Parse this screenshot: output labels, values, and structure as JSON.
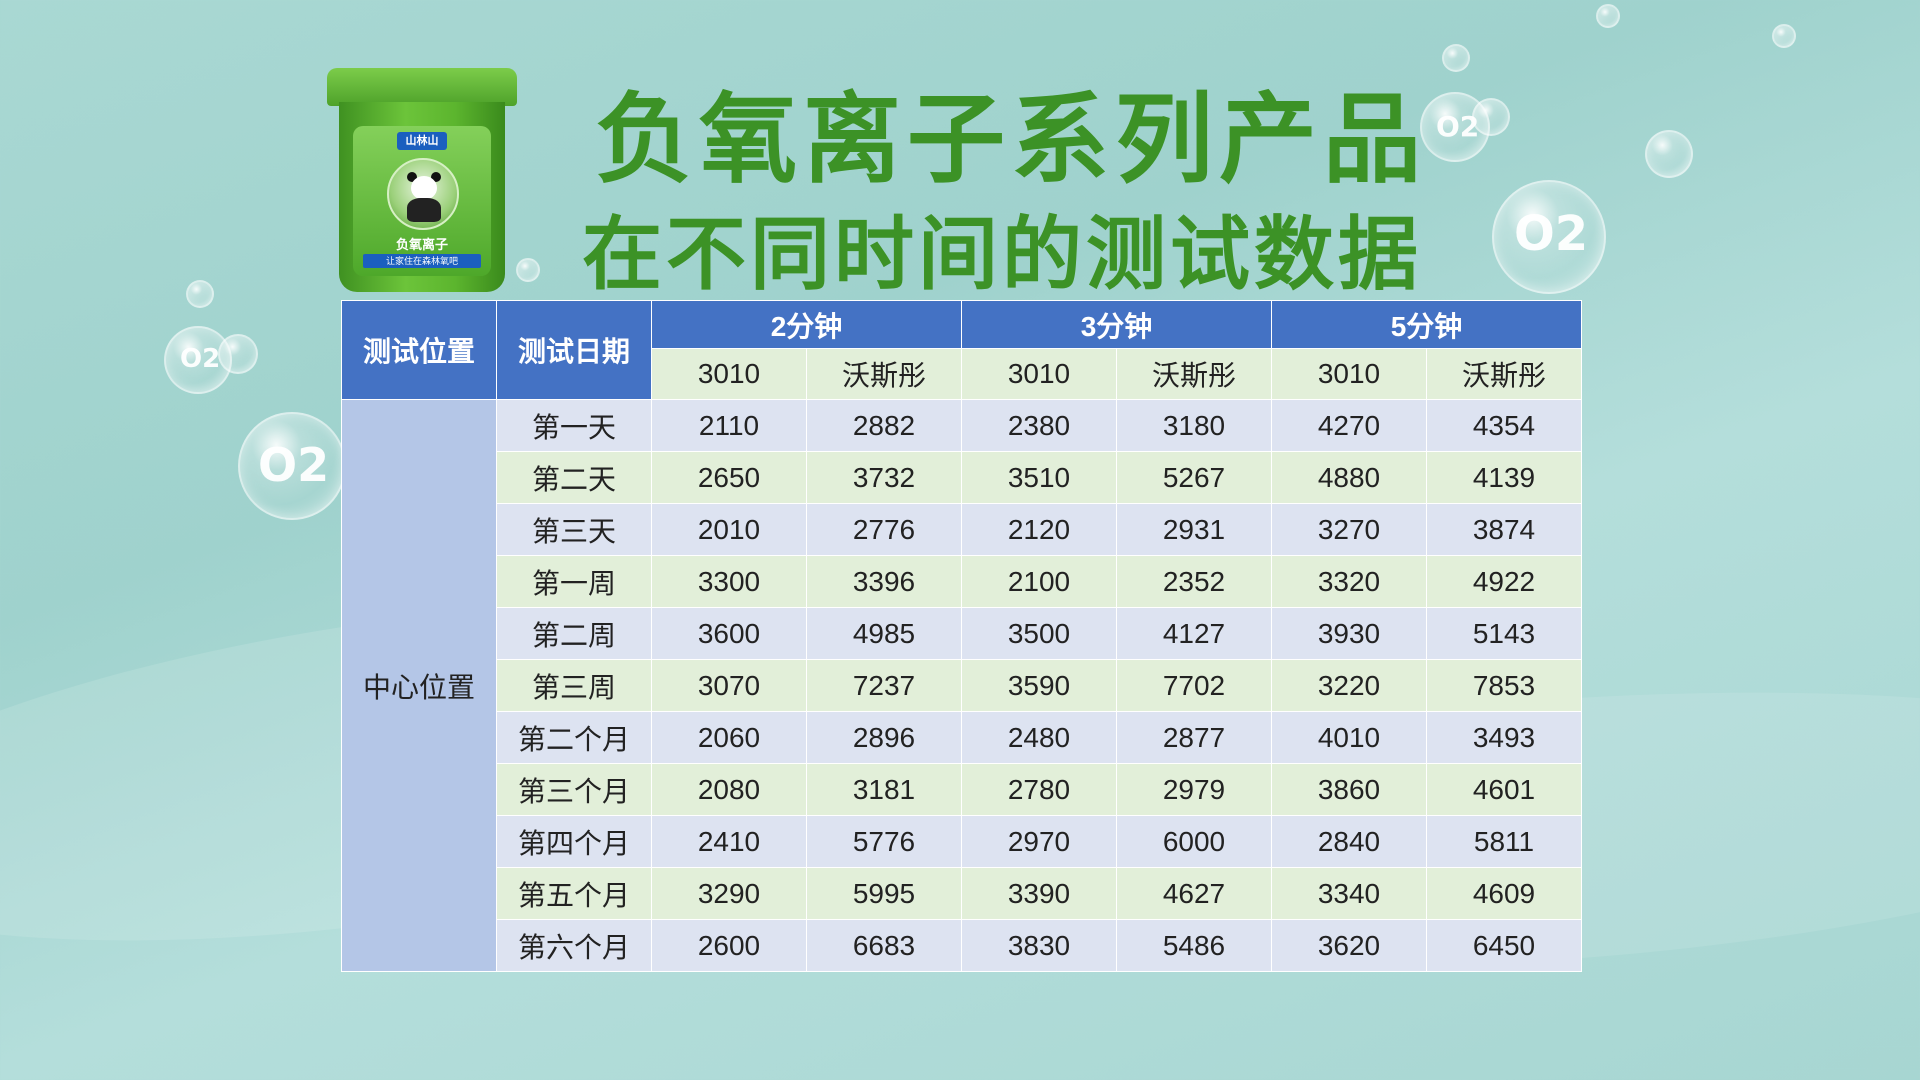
{
  "title": {
    "line1": "负氧离子系列产品",
    "line2": "在不同时间的测试数据"
  },
  "product": {
    "brand": "山林山",
    "name": "负氧离子",
    "slogan": "让家住在森林氧吧"
  },
  "bubble_text": "O2",
  "table": {
    "header_position": "测试位置",
    "header_date": "测试日期",
    "groups": [
      "2分钟",
      "3分钟",
      "5分钟"
    ],
    "sub_headers": [
      "3010",
      "沃斯彤",
      "3010",
      "沃斯彤",
      "3010",
      "沃斯彤"
    ],
    "position_label": "中心位置",
    "rows": [
      {
        "date": "第一天",
        "values": [
          "2110",
          "2882",
          "2380",
          "3180",
          "4270",
          "4354"
        ]
      },
      {
        "date": "第二天",
        "values": [
          "2650",
          "3732",
          "3510",
          "5267",
          "4880",
          "4139"
        ]
      },
      {
        "date": "第三天",
        "values": [
          "2010",
          "2776",
          "2120",
          "2931",
          "3270",
          "3874"
        ]
      },
      {
        "date": "第一周",
        "values": [
          "3300",
          "3396",
          "2100",
          "2352",
          "3320",
          "4922"
        ]
      },
      {
        "date": "第二周",
        "values": [
          "3600",
          "4985",
          "3500",
          "4127",
          "3930",
          "5143"
        ]
      },
      {
        "date": "第三周",
        "values": [
          "3070",
          "7237",
          "3590",
          "7702",
          "3220",
          "7853"
        ]
      },
      {
        "date": "第二个月",
        "values": [
          "2060",
          "2896",
          "2480",
          "2877",
          "4010",
          "3493"
        ]
      },
      {
        "date": "第三个月",
        "values": [
          "2080",
          "3181",
          "2780",
          "2979",
          "3860",
          "4601"
        ]
      },
      {
        "date": "第四个月",
        "values": [
          "2410",
          "5776",
          "2970",
          "6000",
          "2840",
          "5811"
        ]
      },
      {
        "date": "第五个月",
        "values": [
          "3290",
          "5995",
          "3390",
          "4627",
          "3340",
          "4609"
        ]
      },
      {
        "date": "第六个月",
        "values": [
          "2600",
          "6683",
          "3830",
          "5486",
          "3620",
          "6450"
        ]
      }
    ]
  }
}
